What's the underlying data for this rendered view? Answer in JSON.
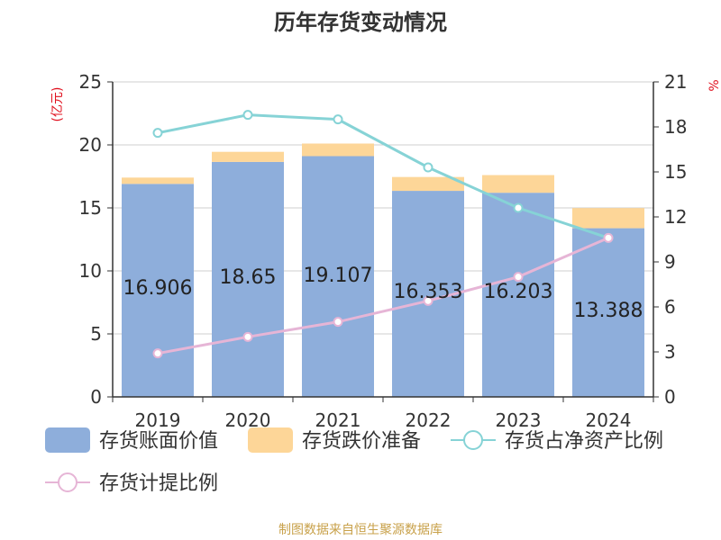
{
  "chart_data": {
    "type": "bar",
    "title": "历年存货变动情况",
    "categories": [
      "2019",
      "2020",
      "2021",
      "2022",
      "2023",
      "2024"
    ],
    "y_left": {
      "label": "(亿元)",
      "range": [
        0,
        25
      ],
      "ticks": [
        "0",
        "5",
        "10",
        "15",
        "20",
        "25"
      ]
    },
    "y_right": {
      "label": "%",
      "range": [
        0,
        21
      ],
      "ticks": [
        "0",
        "3",
        "6",
        "9",
        "12",
        "15",
        "18",
        "21"
      ]
    },
    "bar_series": [
      {
        "name": "存货账面价值",
        "values": [
          16.906,
          18.65,
          19.107,
          16.353,
          16.203,
          13.388
        ],
        "color": "#8eaedb"
      },
      {
        "name": "存货跌价准备",
        "values": [
          0.5,
          0.8,
          1.0,
          1.1,
          1.4,
          1.6
        ],
        "color": "#fdd698"
      }
    ],
    "line_series": [
      {
        "name": "存货占净资产比例",
        "values": [
          17.6,
          18.8,
          18.5,
          15.3,
          12.6,
          10.6
        ],
        "color": "#86d3d6"
      },
      {
        "name": "存货计提比例",
        "values": [
          2.9,
          4.0,
          5.0,
          6.4,
          8.0,
          10.6
        ],
        "color": "#e6b5d6"
      }
    ],
    "data_labels": [
      "16.906",
      "18.65",
      "19.107",
      "16.353",
      "16.203",
      "13.388"
    ],
    "grid": true,
    "legend_position": "bottom"
  },
  "source": "制图数据来自恒生聚源数据库"
}
